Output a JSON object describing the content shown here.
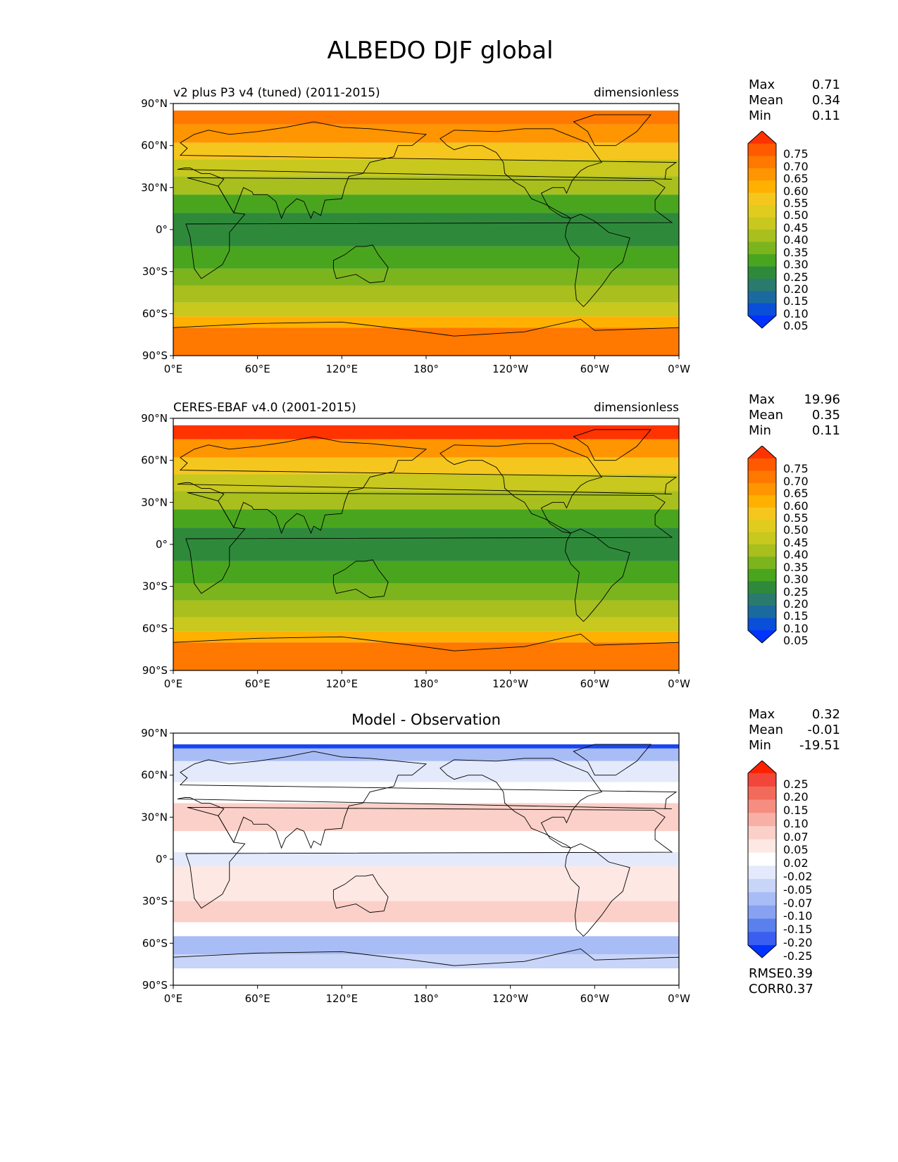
{
  "title": "ALBEDO DJF global",
  "lon_ticks": [
    "0°E",
    "60°E",
    "120°E",
    "180°",
    "120°W",
    "60°W",
    "0°W"
  ],
  "lat_ticks": [
    "90°N",
    "60°N",
    "30°N",
    "0°",
    "30°S",
    "60°S",
    "90°S"
  ],
  "panels": [
    {
      "left_title": "v2 plus P3 v4 (tuned) (2011-2015)",
      "center_title": "",
      "right_title": "dimensionless",
      "stats": [
        {
          "k": "Max",
          "v": "0.71"
        },
        {
          "k": "Mean",
          "v": "0.34"
        },
        {
          "k": "Min",
          "v": "0.11"
        }
      ]
    },
    {
      "left_title": "CERES-EBAF v4.0 (2001-2015)",
      "center_title": "",
      "right_title": "dimensionless",
      "stats": [
        {
          "k": "Max",
          "v": "19.96"
        },
        {
          "k": "Mean",
          "v": "0.35"
        },
        {
          "k": "Min",
          "v": "0.11"
        }
      ]
    },
    {
      "left_title": "",
      "center_title": "Model - Observation",
      "right_title": "",
      "stats": [
        {
          "k": "Max",
          "v": "0.32"
        },
        {
          "k": "Mean",
          "v": "-0.01"
        },
        {
          "k": "Min",
          "v": "-19.51"
        }
      ]
    }
  ],
  "colorbars": {
    "field": {
      "labels": [
        "0.75",
        "0.70",
        "0.65",
        "0.60",
        "0.55",
        "0.50",
        "0.45",
        "0.40",
        "0.35",
        "0.30",
        "0.25",
        "0.20",
        "0.15",
        "0.10",
        "0.05"
      ],
      "colors": [
        "#ff3300",
        "#ff5a00",
        "#ff7800",
        "#ff9500",
        "#ffb000",
        "#f5c61e",
        "#e0cc1e",
        "#c8c81e",
        "#a8bf1e",
        "#7cb41e",
        "#4aa51e",
        "#2e8a3a",
        "#2a7a6e",
        "#1a6aa0",
        "#0a4fd8",
        "#0033ff"
      ]
    },
    "diff": {
      "labels": [
        "0.25",
        "0.20",
        "0.15",
        "0.10",
        "0.07",
        "0.05",
        "0.02",
        "-0.02",
        "-0.05",
        "-0.07",
        "-0.10",
        "-0.15",
        "-0.20",
        "-0.25"
      ],
      "colors": [
        "#ff2200",
        "#f2463a",
        "#f26a5a",
        "#f58e80",
        "#f8b0a6",
        "#fbd0c8",
        "#fde8e4",
        "#ffffff",
        "#e4eafb",
        "#c8d4f8",
        "#a8bcf5",
        "#88a2f1",
        "#5a80ee",
        "#3a5ef0",
        "#0033ff"
      ]
    }
  },
  "footer_stats": [
    {
      "k": "RMSE",
      "v": "0.39"
    },
    {
      "k": "CORR",
      "v": "0.37"
    }
  ]
}
